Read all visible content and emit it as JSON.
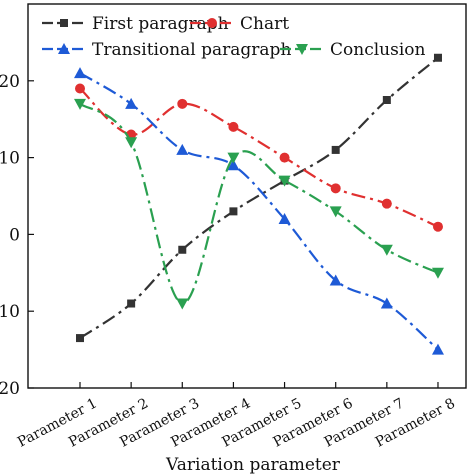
{
  "chart_data": {
    "type": "line",
    "xlabel": "Variation parameter",
    "ylabel": "",
    "categories": [
      "Parameter 1",
      "Parameter 2",
      "Parameter 3",
      "Parameter 4",
      "Parameter 5",
      "Parameter 6",
      "Parameter 7",
      "Parameter 8"
    ],
    "ylim": [
      -20,
      30
    ],
    "yticks": [
      -20,
      -10,
      0,
      10,
      20
    ],
    "ytick_labels": [
      "20",
      "10",
      "0",
      "10",
      "20"
    ],
    "grid": false,
    "legend_placement": "top",
    "series": [
      {
        "name": "First paragraph",
        "color": "#333333",
        "marker": "square",
        "dash": "dash-dot",
        "values": [
          -13.5,
          -9,
          -2,
          3,
          7,
          11,
          17.5,
          23
        ]
      },
      {
        "name": "Chart",
        "color": "#e03030",
        "marker": "circle",
        "dash": "dash-dot",
        "values": [
          19,
          13,
          17,
          14,
          10,
          6,
          4,
          1
        ]
      },
      {
        "name": "Transitional paragraph",
        "color": "#1e5ad6",
        "marker": "triangle-up",
        "dash": "dash-dot",
        "values": [
          21,
          17,
          11,
          9,
          2,
          -6,
          -9,
          -15
        ]
      },
      {
        "name": "Conclusion",
        "color": "#2aa050",
        "marker": "triangle-down",
        "dash": "dash-dot",
        "values": [
          17,
          12,
          -9,
          10,
          7,
          3,
          -2,
          -5
        ]
      }
    ]
  }
}
